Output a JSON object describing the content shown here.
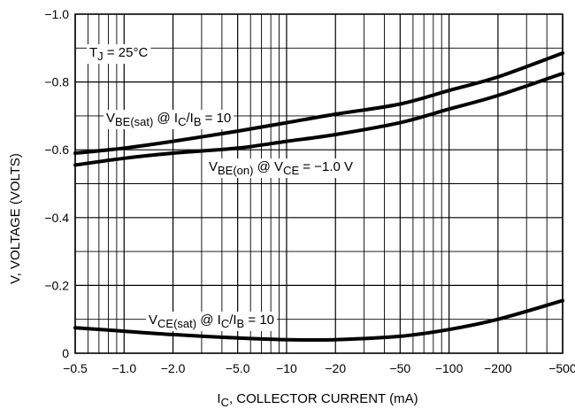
{
  "chart_data": {
    "type": "line",
    "x_scale": "log",
    "x_magnitude_range": [
      0.5,
      500
    ],
    "ylim": [
      0,
      -1.0
    ],
    "grid": true,
    "legend": "none",
    "xlabel": {
      "main": "I",
      "sub": "C",
      "rest": ", COLLECTOR CURRENT (mA)"
    },
    "ylabel": "V, VOLTAGE (VOLTS)",
    "x_ticks": [
      {
        "value": 0.5,
        "label": "−0.5"
      },
      {
        "value": 1,
        "label": "−1.0"
      },
      {
        "value": 2,
        "label": "−2.0"
      },
      {
        "value": 5,
        "label": "−5.0"
      },
      {
        "value": 10,
        "label": "−10"
      },
      {
        "value": 20,
        "label": "−20"
      },
      {
        "value": 50,
        "label": "−50"
      },
      {
        "value": 100,
        "label": "−100"
      },
      {
        "value": 200,
        "label": "−200"
      },
      {
        "value": 500,
        "label": "−500"
      }
    ],
    "y_ticks": [
      {
        "value": 0,
        "label": "0"
      },
      {
        "value": -0.2,
        "label": "−0.2"
      },
      {
        "value": -0.4,
        "label": "−0.4"
      },
      {
        "value": -0.6,
        "label": "−0.6"
      },
      {
        "value": -0.8,
        "label": "−0.8"
      },
      {
        "value": -1.0,
        "label": "−1.0"
      }
    ],
    "annotation": {
      "parts": [
        {
          "t": "T"
        },
        {
          "t": "J",
          "sub": true
        },
        {
          "t": " = 25°C"
        }
      ]
    },
    "series": [
      {
        "label_parts": [
          {
            "t": "V"
          },
          {
            "t": "BE(sat)",
            "sub": true
          },
          {
            "t": " @ I"
          },
          {
            "t": "C",
            "sub": true
          },
          {
            "t": "/I"
          },
          {
            "t": "B",
            "sub": true
          },
          {
            "t": " = 10"
          }
        ],
        "x": [
          0.5,
          1,
          2,
          5,
          10,
          20,
          50,
          100,
          200,
          500
        ],
        "y": [
          -0.59,
          -0.605,
          -0.625,
          -0.655,
          -0.68,
          -0.705,
          -0.735,
          -0.775,
          -0.815,
          -0.885
        ]
      },
      {
        "label_parts": [
          {
            "t": "V"
          },
          {
            "t": "BE(on)",
            "sub": true
          },
          {
            "t": " @ V"
          },
          {
            "t": "CE",
            "sub": true
          },
          {
            "t": " = −1.0 V"
          }
        ],
        "x": [
          0.5,
          1,
          2,
          5,
          10,
          20,
          50,
          100,
          200,
          500
        ],
        "y": [
          -0.555,
          -0.575,
          -0.59,
          -0.605,
          -0.625,
          -0.645,
          -0.68,
          -0.72,
          -0.76,
          -0.825
        ]
      },
      {
        "label_parts": [
          {
            "t": "V"
          },
          {
            "t": "CE(sat)",
            "sub": true
          },
          {
            "t": " @ I"
          },
          {
            "t": "C",
            "sub": true
          },
          {
            "t": "/I"
          },
          {
            "t": "B",
            "sub": true
          },
          {
            "t": " = 10"
          }
        ],
        "x": [
          0.5,
          1,
          2,
          5,
          10,
          20,
          50,
          100,
          200,
          500
        ],
        "y": [
          -0.075,
          -0.065,
          -0.055,
          -0.045,
          -0.04,
          -0.04,
          -0.05,
          -0.07,
          -0.1,
          -0.155
        ]
      }
    ]
  }
}
